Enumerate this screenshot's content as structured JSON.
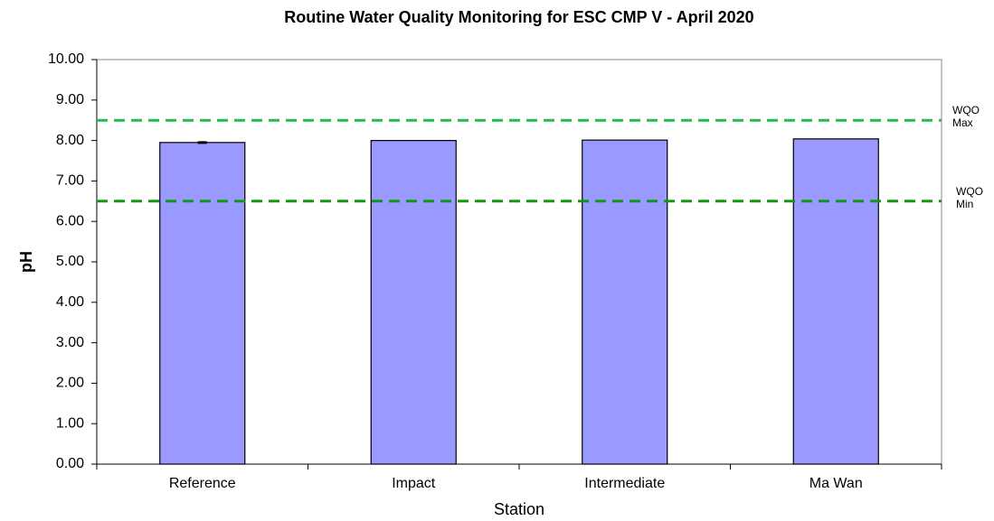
{
  "chart_data": {
    "type": "bar",
    "title": "Routine Water Quality Monitoring for ESC CMP V -  April 2020",
    "x_label": "Station",
    "y_label": "pH",
    "categories": [
      "Reference",
      "Impact",
      "Intermediate",
      "Ma Wan"
    ],
    "values": [
      7.95,
      8.0,
      8.01,
      8.04
    ],
    "errors": [
      0.02,
      null,
      null,
      null
    ],
    "color": "#9999ff",
    "ylim": [
      0,
      10
    ],
    "yticks": [
      {
        "value": 0,
        "label": "0.00"
      },
      {
        "value": 1,
        "label": "1.00"
      },
      {
        "value": 2,
        "label": "2.00"
      },
      {
        "value": 3,
        "label": "3.00"
      },
      {
        "value": 4,
        "label": "4.00"
      },
      {
        "value": 5,
        "label": "5.00"
      },
      {
        "value": 6,
        "label": "6.00"
      },
      {
        "value": 7,
        "label": "7.00"
      },
      {
        "value": 8,
        "label": "8.00"
      },
      {
        "value": 9,
        "label": "9.00"
      },
      {
        "value": 10,
        "label": "10.00"
      }
    ],
    "reference_lines": [
      {
        "value": 8.5,
        "label": [
          "WQO",
          "Max"
        ],
        "color": "#22bb55"
      },
      {
        "value": 6.5,
        "label": [
          "WQO",
          "Min"
        ],
        "color": "#119911"
      }
    ]
  }
}
